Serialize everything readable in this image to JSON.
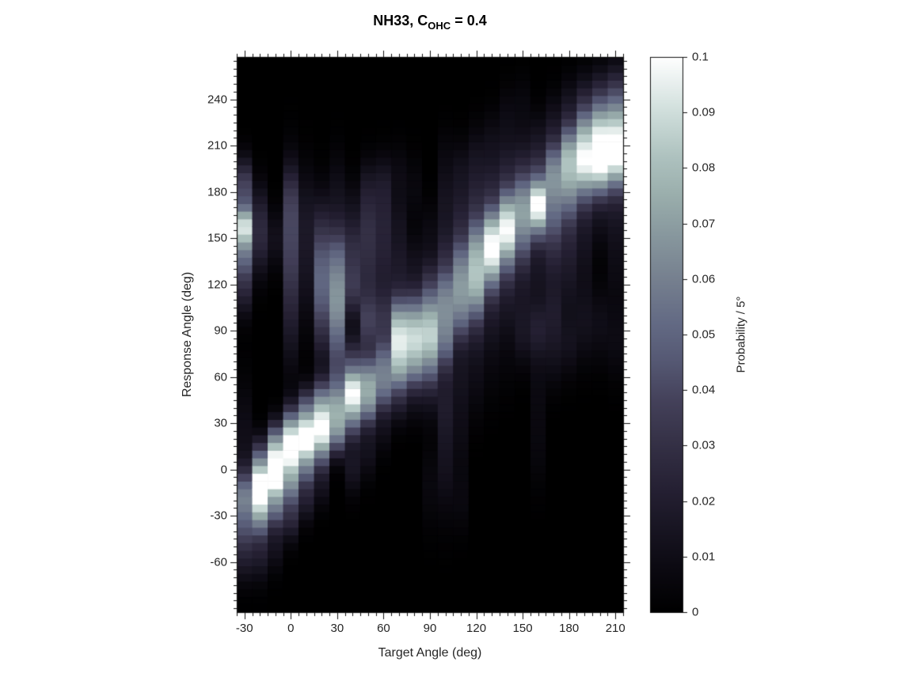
{
  "title": {
    "prefix": "NH33, C",
    "subscript": "OHC",
    "suffix": " = 0.4"
  },
  "axes": {
    "xlabel": "Target Angle (deg)",
    "ylabel": "Response Angle (deg)",
    "xlim": [
      -35,
      215
    ],
    "ylim": [
      -92.5,
      267.5
    ],
    "x_major_ticks": [
      -30,
      0,
      30,
      60,
      90,
      120,
      150,
      180,
      210
    ],
    "x_tick_labels": [
      "-30",
      "0",
      "30",
      "60",
      "90",
      "120",
      "150",
      "180",
      "210"
    ],
    "y_major_ticks": [
      -60,
      -30,
      0,
      30,
      60,
      90,
      120,
      150,
      180,
      210,
      240
    ],
    "y_tick_labels": [
      "-60",
      "-30",
      "0",
      "30",
      "60",
      "90",
      "120",
      "150",
      "180",
      "210",
      "240"
    ],
    "minor_tick_step": 5,
    "tick_direction": "out",
    "box": true
  },
  "colorbar": {
    "label": "Probability / 5°",
    "min": 0,
    "max": 0.1,
    "tick_values": [
      0,
      0.01,
      0.02,
      0.03,
      0.04,
      0.05,
      0.06,
      0.07,
      0.08,
      0.09,
      0.1
    ],
    "tick_labels": [
      "0",
      "0.01",
      "0.02",
      "0.03",
      "0.04",
      "0.05",
      "0.06",
      "0.07",
      "0.08",
      "0.09",
      "0.1"
    ],
    "colormap_stops": [
      [
        0.0,
        "#000000"
      ],
      [
        0.08,
        "#0c0a12"
      ],
      [
        0.15,
        "#181522"
      ],
      [
        0.22,
        "#252033"
      ],
      [
        0.3,
        "#343045"
      ],
      [
        0.38,
        "#44415a"
      ],
      [
        0.45,
        "#555873"
      ],
      [
        0.52,
        "#636a84"
      ],
      [
        0.6,
        "#76808f"
      ],
      [
        0.68,
        "#88989e"
      ],
      [
        0.75,
        "#9aaeac"
      ],
      [
        0.82,
        "#aec2bf"
      ],
      [
        0.9,
        "#cfdedb"
      ],
      [
        1.0,
        "#ffffff"
      ]
    ]
  },
  "chart_data": {
    "type": "heatmap",
    "title": "NH33, C_OHC = 0.4",
    "xlabel": "Target Angle (deg)",
    "ylabel": "Response Angle (deg)",
    "value_label": "Probability / 5°",
    "zlim": [
      0,
      0.1
    ],
    "x_bin_centers_range": [
      -30,
      210
    ],
    "x_bin_size": 10,
    "y_bin_centers_range": [
      -90,
      265
    ],
    "y_bin_size": 5,
    "columns_note": "Each column of the heatmap (one target angle) is encoded as estimated Gaussian response modes: [mean_deg, sigma_deg, peak_probability_per_5deg]; column value = clamped sum of modes.",
    "columns": [
      {
        "target": -30,
        "modes": [
          [
            158,
            9,
            0.075
          ],
          [
            183,
            13,
            0.038
          ],
          [
            140,
            11,
            0.042
          ],
          [
            118,
            13,
            0.022
          ],
          [
            -18,
            13,
            0.055
          ],
          [
            -42,
            11,
            0.028
          ],
          [
            22,
            25,
            0.01
          ],
          [
            -62,
            10,
            0.012
          ]
        ]
      },
      {
        "target": -20,
        "modes": [
          [
            -12,
            11,
            0.105
          ],
          [
            -32,
            10,
            0.045
          ],
          [
            8,
            10,
            0.035
          ],
          [
            148,
            16,
            0.022
          ],
          [
            170,
            14,
            0.012
          ],
          [
            -55,
            12,
            0.018
          ]
        ]
      },
      {
        "target": -10,
        "modes": [
          [
            -2,
            11,
            0.11
          ],
          [
            18,
            10,
            0.05
          ],
          [
            -25,
            10,
            0.045
          ],
          [
            150,
            14,
            0.012
          ],
          [
            -50,
            11,
            0.012
          ]
        ]
      },
      {
        "target": 0,
        "modes": [
          [
            13,
            10,
            0.098
          ],
          [
            -8,
            10,
            0.055
          ],
          [
            30,
            10,
            0.045
          ],
          [
            148,
            30,
            0.036
          ],
          [
            178,
            15,
            0.012
          ],
          [
            -30,
            11,
            0.025
          ],
          [
            95,
            25,
            0.012
          ]
        ]
      },
      {
        "target": 10,
        "modes": [
          [
            20,
            10,
            0.105
          ],
          [
            40,
            10,
            0.042
          ],
          [
            0,
            9,
            0.04
          ],
          [
            135,
            30,
            0.014
          ],
          [
            -20,
            10,
            0.018
          ],
          [
            170,
            20,
            0.008
          ]
        ]
      },
      {
        "target": 20,
        "modes": [
          [
            27,
            10,
            0.092
          ],
          [
            46,
            10,
            0.048
          ],
          [
            10,
            9,
            0.035
          ],
          [
            122,
            22,
            0.042
          ],
          [
            155,
            20,
            0.018
          ],
          [
            90,
            20,
            0.015
          ],
          [
            -10,
            10,
            0.012
          ]
        ]
      },
      {
        "target": 30,
        "modes": [
          [
            40,
            12,
            0.058
          ],
          [
            22,
            10,
            0.042
          ],
          [
            115,
            18,
            0.052
          ],
          [
            90,
            16,
            0.03
          ],
          [
            142,
            15,
            0.028
          ],
          [
            62,
            15,
            0.025
          ],
          [
            175,
            20,
            0.012
          ]
        ]
      },
      {
        "target": 40,
        "modes": [
          [
            50,
            10,
            0.085
          ],
          [
            32,
            10,
            0.042
          ],
          [
            70,
            12,
            0.032
          ],
          [
            118,
            14,
            0.032
          ],
          [
            145,
            13,
            0.022
          ],
          [
            2,
            12,
            0.015
          ],
          [
            170,
            14,
            0.01
          ]
        ]
      },
      {
        "target": 50,
        "modes": [
          [
            58,
            12,
            0.062
          ],
          [
            40,
            10,
            0.04
          ],
          [
            95,
            14,
            0.032
          ],
          [
            130,
            20,
            0.022
          ],
          [
            160,
            16,
            0.02
          ],
          [
            12,
            12,
            0.012
          ],
          [
            185,
            13,
            0.012
          ]
        ]
      },
      {
        "target": 60,
        "modes": [
          [
            68,
            12,
            0.048
          ],
          [
            50,
            10,
            0.035
          ],
          [
            98,
            14,
            0.028
          ],
          [
            135,
            18,
            0.018
          ],
          [
            165,
            16,
            0.016
          ],
          [
            28,
            12,
            0.01
          ],
          [
            188,
            13,
            0.012
          ]
        ]
      },
      {
        "target": 70,
        "modes": [
          [
            80,
            13,
            0.078
          ],
          [
            60,
            10,
            0.038
          ],
          [
            100,
            12,
            0.045
          ],
          [
            132,
            15,
            0.016
          ],
          [
            42,
            10,
            0.014
          ],
          [
            162,
            13,
            0.01
          ],
          [
            192,
            13,
            0.008
          ]
        ]
      },
      {
        "target": 80,
        "modes": [
          [
            82,
            13,
            0.075
          ],
          [
            102,
            12,
            0.04
          ],
          [
            62,
            10,
            0.032
          ],
          [
            132,
            15,
            0.012
          ],
          [
            42,
            10,
            0.008
          ],
          [
            182,
            15,
            0.006
          ]
        ]
      },
      {
        "target": 90,
        "modes": [
          [
            82,
            13,
            0.07
          ],
          [
            102,
            12,
            0.045
          ],
          [
            122,
            12,
            0.022
          ],
          [
            62,
            10,
            0.022
          ],
          [
            45,
            12,
            0.01
          ],
          [
            152,
            15,
            0.008
          ],
          [
            -10,
            20,
            0.006
          ]
        ]
      },
      {
        "target": 100,
        "modes": [
          [
            97,
            14,
            0.048
          ],
          [
            117,
            12,
            0.035
          ],
          [
            140,
            14,
            0.02
          ],
          [
            77,
            12,
            0.028
          ],
          [
            45,
            18,
            0.015
          ],
          [
            5,
            25,
            0.012
          ],
          [
            172,
            15,
            0.012
          ],
          [
            200,
            15,
            0.006
          ]
        ]
      },
      {
        "target": 110,
        "modes": [
          [
            116,
            13,
            0.052
          ],
          [
            136,
            12,
            0.035
          ],
          [
            96,
            12,
            0.032
          ],
          [
            160,
            15,
            0.02
          ],
          [
            65,
            18,
            0.012
          ],
          [
            192,
            15,
            0.012
          ],
          [
            25,
            20,
            0.008
          ],
          [
            -20,
            15,
            0.006
          ]
        ]
      },
      {
        "target": 120,
        "modes": [
          [
            128,
            13,
            0.06
          ],
          [
            148,
            12,
            0.042
          ],
          [
            110,
            12,
            0.035
          ],
          [
            172,
            15,
            0.022
          ],
          [
            92,
            15,
            0.015
          ],
          [
            202,
            15,
            0.012
          ],
          [
            60,
            20,
            0.008
          ]
        ]
      },
      {
        "target": 130,
        "modes": [
          [
            140,
            12,
            0.072
          ],
          [
            157,
            12,
            0.052
          ],
          [
            122,
            12,
            0.03
          ],
          [
            182,
            14,
            0.02
          ],
          [
            98,
            15,
            0.012
          ],
          [
            212,
            14,
            0.01
          ],
          [
            70,
            20,
            0.005
          ]
        ]
      },
      {
        "target": 140,
        "modes": [
          [
            152,
            12,
            0.075
          ],
          [
            170,
            12,
            0.048
          ],
          [
            132,
            12,
            0.028
          ],
          [
            196,
            14,
            0.018
          ],
          [
            108,
            15,
            0.012
          ],
          [
            228,
            14,
            0.008
          ],
          [
            80,
            20,
            0.005
          ]
        ]
      },
      {
        "target": 150,
        "modes": [
          [
            162,
            13,
            0.052
          ],
          [
            180,
            12,
            0.035
          ],
          [
            142,
            12,
            0.024
          ],
          [
            202,
            14,
            0.015
          ],
          [
            118,
            15,
            0.012
          ],
          [
            88,
            15,
            0.014
          ],
          [
            235,
            14,
            0.006
          ]
        ]
      },
      {
        "target": 160,
        "modes": [
          [
            172,
            10,
            0.085
          ],
          [
            156,
            10,
            0.032
          ],
          [
            190,
            12,
            0.032
          ],
          [
            132,
            15,
            0.014
          ],
          [
            92,
            15,
            0.02
          ],
          [
            215,
            13,
            0.012
          ],
          [
            55,
            20,
            0.006
          ],
          [
            15,
            20,
            0.005
          ]
        ]
      },
      {
        "target": 170,
        "modes": [
          [
            183,
            13,
            0.048
          ],
          [
            201,
            12,
            0.035
          ],
          [
            162,
            12,
            0.028
          ],
          [
            142,
            15,
            0.02
          ],
          [
            102,
            18,
            0.018
          ],
          [
            226,
            13,
            0.012
          ],
          [
            72,
            15,
            0.008
          ]
        ]
      },
      {
        "target": 180,
        "modes": [
          [
            192,
            13,
            0.058
          ],
          [
            210,
            12,
            0.045
          ],
          [
            172,
            12,
            0.03
          ],
          [
            150,
            15,
            0.016
          ],
          [
            122,
            18,
            0.012
          ],
          [
            235,
            13,
            0.014
          ],
          [
            82,
            15,
            0.012
          ]
        ]
      },
      {
        "target": 190,
        "modes": [
          [
            199,
            12,
            0.078
          ],
          [
            219,
            12,
            0.052
          ],
          [
            180,
            12,
            0.03
          ],
          [
            240,
            13,
            0.018
          ],
          [
            155,
            15,
            0.012
          ],
          [
            95,
            18,
            0.012
          ],
          [
            130,
            15,
            0.006
          ]
        ]
      },
      {
        "target": 200,
        "modes": [
          [
            203,
            12,
            0.09
          ],
          [
            223,
            12,
            0.058
          ],
          [
            186,
            11,
            0.035
          ],
          [
            243,
            13,
            0.022
          ],
          [
            162,
            15,
            0.01
          ],
          [
            95,
            18,
            0.01
          ]
        ]
      },
      {
        "target": 210,
        "modes": [
          [
            206,
            12,
            0.088
          ],
          [
            226,
            12,
            0.052
          ],
          [
            189,
            11,
            0.03
          ],
          [
            246,
            13,
            0.026
          ],
          [
            135,
            20,
            0.008
          ],
          [
            168,
            15,
            0.012
          ],
          [
            85,
            18,
            0.008
          ]
        ]
      }
    ]
  }
}
